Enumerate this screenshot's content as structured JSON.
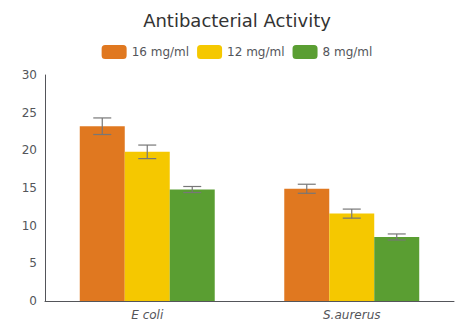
{
  "chart_data": {
    "type": "bar",
    "title": "Antibacterial Activity",
    "categories": [
      "E coli",
      "S.aurerus"
    ],
    "series": [
      {
        "name": "16 mg/ml",
        "color": "#E07820",
        "values": [
          23.2,
          14.9
        ],
        "errors": [
          1.1,
          0.6
        ]
      },
      {
        "name": "12 mg/ml",
        "color": "#F5C800",
        "values": [
          19.8,
          11.6
        ],
        "errors": [
          0.9,
          0.6
        ]
      },
      {
        "name": "8 mg/ml",
        "color": "#5A9E32",
        "values": [
          14.8,
          8.5
        ],
        "errors": [
          0.4,
          0.4
        ]
      }
    ],
    "ylim": [
      0,
      30
    ],
    "yticks": [
      0,
      5,
      10,
      15,
      20,
      25,
      30
    ],
    "grid": false,
    "legend": "top"
  }
}
